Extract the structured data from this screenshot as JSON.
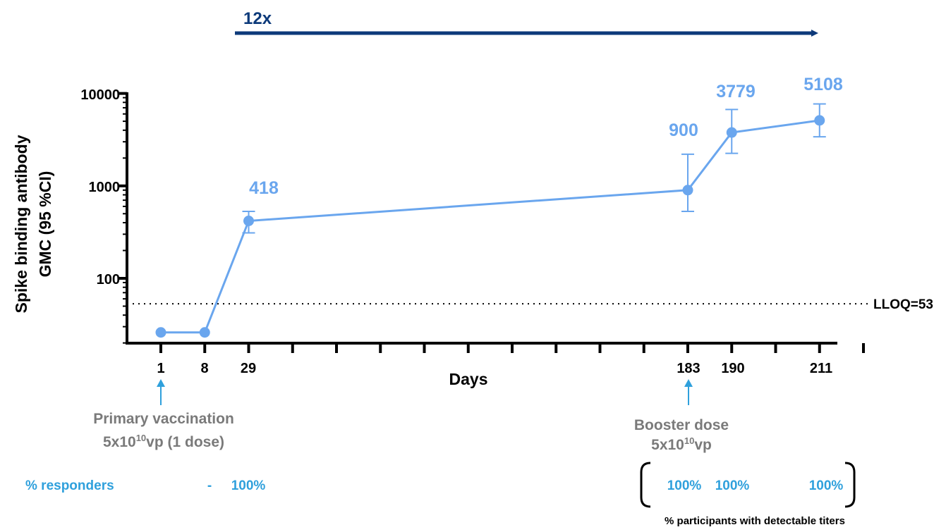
{
  "chart_data": {
    "type": "line",
    "title": "",
    "xlabel": "Days",
    "ylabel_line1": "Spike binding antibody",
    "ylabel_line2": "GMC (95 %CI)",
    "yscale": "log",
    "ylim": [
      20,
      10000
    ],
    "y_ticks": [
      "100",
      "1000",
      "10000"
    ],
    "x_tick_labels": [
      "1",
      "8",
      "29",
      "183",
      "190",
      "211"
    ],
    "series": [
      {
        "color": "#6aa6ee",
        "points": [
          {
            "day": 1,
            "value": 26
          },
          {
            "day": 8,
            "value": 26
          },
          {
            "day": 29,
            "value": 418,
            "ci": [
              310,
              530
            ]
          },
          {
            "day": 183,
            "value": 900,
            "ci": [
              530,
              2200
            ]
          },
          {
            "day": 190,
            "value": 3779,
            "ci": [
              2250,
              6700
            ]
          },
          {
            "day": 211,
            "value": 5108,
            "ci": [
              3400,
              7700
            ]
          }
        ]
      }
    ],
    "data_labels": [
      "418",
      "900",
      "3779",
      "5108"
    ],
    "reference_line": {
      "value": 53,
      "label": "LLOQ=53",
      "style": "dotted"
    }
  },
  "fold_arrow": {
    "label": "12x",
    "color": "#0d3a7a"
  },
  "annotations": {
    "primary": {
      "line1": "Primary vaccination",
      "line2_main": "5x10",
      "line2_sup": "10",
      "line2_tail": "vp (1 dose)"
    },
    "booster": {
      "line1": "Booster dose",
      "line2_main": "5x10",
      "line2_sup": "10",
      "line2_tail": "vp"
    },
    "arrow_color": "#2fa0dc"
  },
  "responders": {
    "label": "% responders",
    "values": [
      "-",
      "100%",
      "100%",
      "100%",
      "100%"
    ],
    "color": "#2fa0dc"
  },
  "footnote": "% participants with detectable titers"
}
